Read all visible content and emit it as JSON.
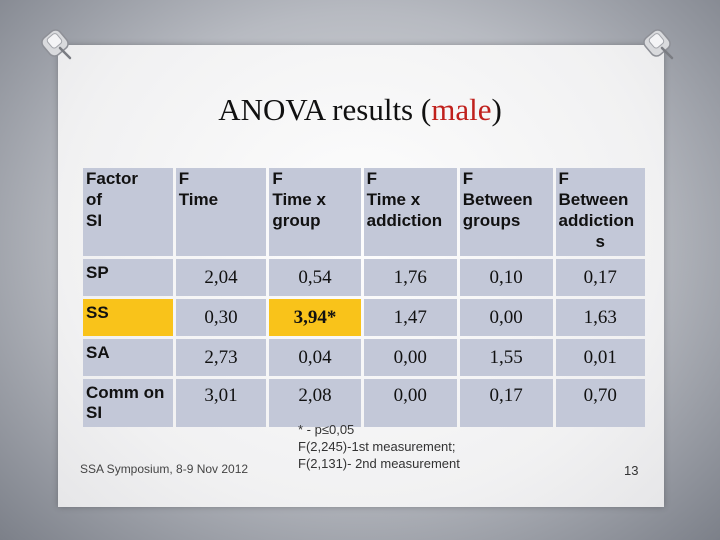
{
  "title": {
    "main": "ANOVA results (",
    "accent": "male",
    "close": ")"
  },
  "table": {
    "headers": [
      [
        "Factor",
        "of",
        "SI"
      ],
      [
        "F",
        "Time"
      ],
      [
        "F",
        "Time x",
        "group"
      ],
      [
        "F",
        "Time x",
        "addiction"
      ],
      [
        "F",
        "Between",
        "groups"
      ],
      [
        "F",
        "Between",
        "addiction",
        "s"
      ]
    ],
    "rows": [
      {
        "label": "SP",
        "values": [
          "2,04",
          "0,54",
          "1,76",
          "0,10",
          "0,17"
        ]
      },
      {
        "label": "SS",
        "values": [
          "0,30",
          "3,94*",
          "1,47",
          "0,00",
          "1,63"
        ]
      },
      {
        "label": "SA",
        "values": [
          "2,73",
          "0,04",
          "0,00",
          "1,55",
          "0,01"
        ]
      },
      {
        "label": "Comm on SI",
        "values": [
          "3,01",
          "2,08",
          "0,00",
          "0,17",
          "0,70"
        ]
      }
    ]
  },
  "highlight_color": "#f9c31a",
  "cell_color": "#c3c8d8",
  "accent_color": "#c0201c",
  "footer": "SSA Symposium, 8-9 Nov 2012",
  "footnote": [
    "* -  p≤0,05",
    "F(2,245)-1st measurement;",
    "F(2,131)- 2nd measurement"
  ],
  "page_number": "13"
}
